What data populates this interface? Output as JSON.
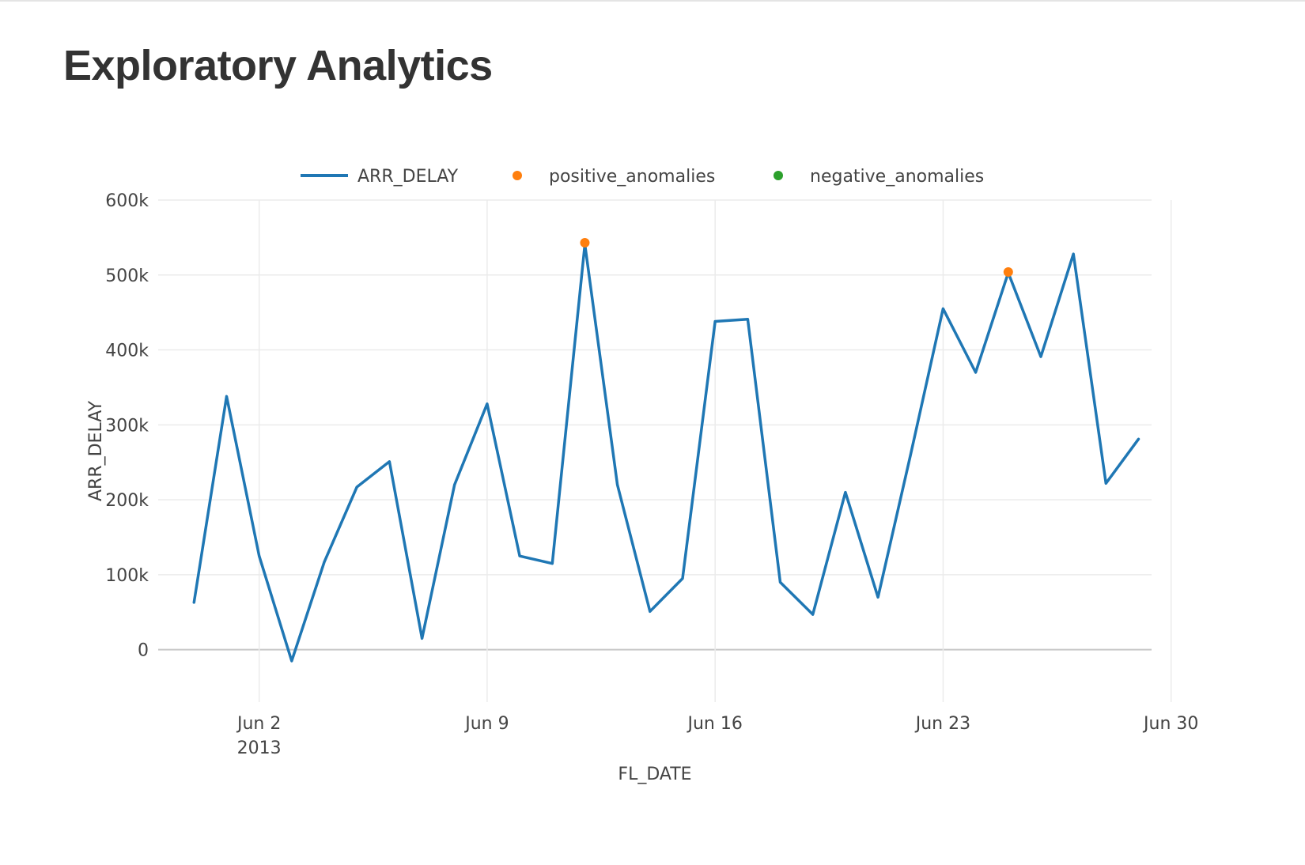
{
  "page": {
    "title": "Exploratory Analytics"
  },
  "chart_data": {
    "type": "line",
    "title": "",
    "xlabel": "FL_DATE",
    "ylabel": "ARR_DELAY",
    "grid": true,
    "legend_position": "top-center",
    "x_start": "2013-05-31",
    "x_step_days": 1,
    "xlim_days": [
      -1.1,
      29.4
    ],
    "ylim": [
      -70000,
      600000
    ],
    "x_ticks": [
      {
        "day": 2,
        "label": "Jun 2",
        "sublabel": "2013"
      },
      {
        "day": 9,
        "label": "Jun 9",
        "sublabel": ""
      },
      {
        "day": 16,
        "label": "Jun 16",
        "sublabel": ""
      },
      {
        "day": 23,
        "label": "Jun 23",
        "sublabel": ""
      },
      {
        "day": 30,
        "label": "Jun 30",
        "sublabel": ""
      }
    ],
    "y_ticks": [
      {
        "value": 0,
        "label": "0"
      },
      {
        "value": 100000,
        "label": "100k"
      },
      {
        "value": 200000,
        "label": "200k"
      },
      {
        "value": 300000,
        "label": "300k"
      },
      {
        "value": 400000,
        "label": "400k"
      },
      {
        "value": 500000,
        "label": "500k"
      },
      {
        "value": 600000,
        "label": "600k"
      }
    ],
    "series": [
      {
        "name": "ARR_DELAY",
        "kind": "line",
        "color": "#1f77b4",
        "days": [
          0,
          1,
          2,
          3,
          4,
          5,
          6,
          7,
          8,
          9,
          10,
          11,
          12,
          13,
          14,
          15,
          16,
          17,
          18,
          19,
          20,
          21,
          22,
          23,
          24,
          25,
          26,
          27,
          28,
          29
        ],
        "values": [
          63000,
          338000,
          125000,
          -15000,
          117000,
          217000,
          251000,
          15000,
          220000,
          328000,
          125000,
          115000,
          541000,
          220000,
          51000,
          95000,
          438000,
          441000,
          90000,
          47000,
          210000,
          70000,
          260000,
          455000,
          370000,
          503000,
          391000,
          528000,
          222000,
          281000
        ]
      },
      {
        "name": "positive_anomalies",
        "kind": "markers",
        "color": "#ff7f0e",
        "days": [
          12,
          25
        ],
        "values": [
          543000,
          504000
        ]
      },
      {
        "name": "negative_anomalies",
        "kind": "markers",
        "color": "#2ca02c",
        "days": [],
        "values": []
      }
    ]
  }
}
